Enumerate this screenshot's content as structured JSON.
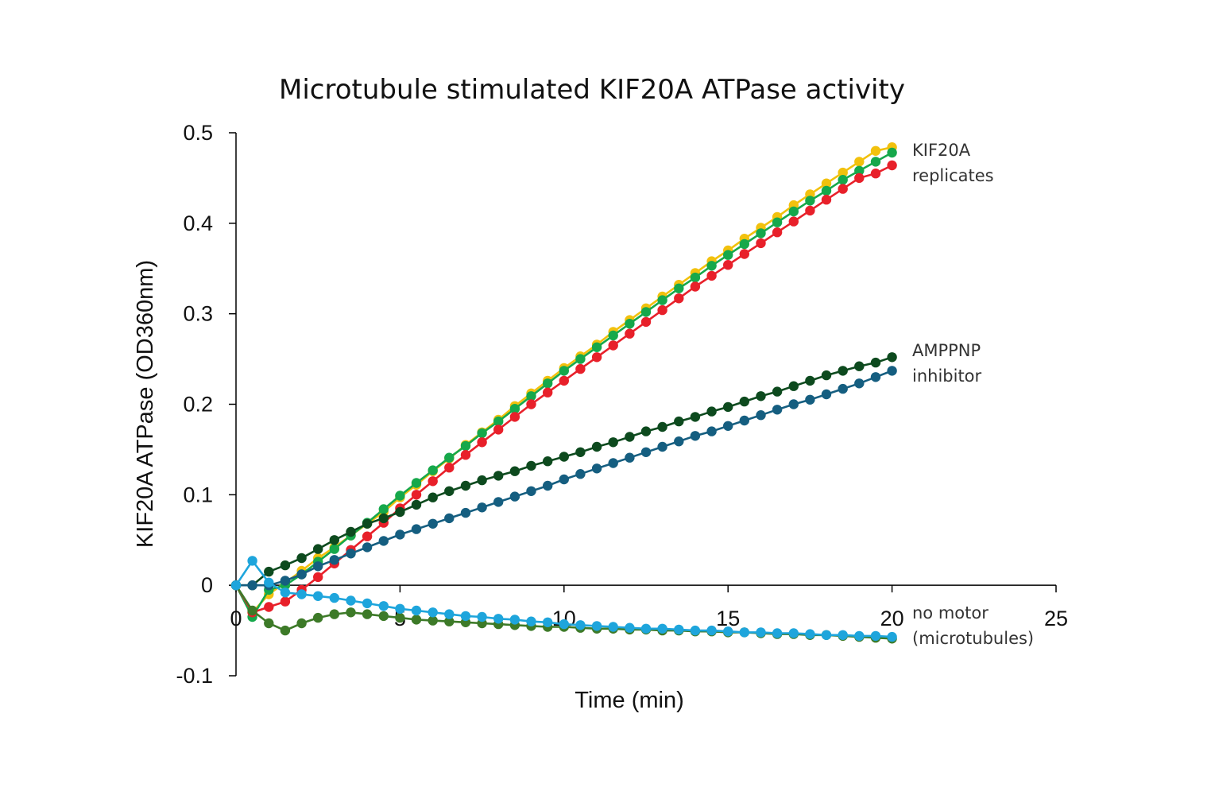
{
  "chart_data": {
    "type": "line",
    "title": "Microtubule stimulated KIF20A ATPase activity",
    "xlabel": "Time (min)",
    "ylabel": "KIF20A  ATPase  (OD360nm)",
    "xlim": [
      0,
      25
    ],
    "ylim": [
      -0.1,
      0.5
    ],
    "x_ticks": [
      "0",
      "5",
      "10",
      "15",
      "20",
      "25"
    ],
    "y_ticks": [
      "0.5",
      "0.4",
      "0.3",
      "0.2",
      "0.1",
      "0",
      "-0.1"
    ],
    "grid": false,
    "x_step": 0.5,
    "annotations": [
      {
        "id": "kif20a",
        "lines": [
          "KIF20A",
          "replicates"
        ]
      },
      {
        "id": "amppnp",
        "lines": [
          "AMPPNP",
          "inhibitor"
        ]
      },
      {
        "id": "nomotor",
        "lines": [
          "no motor",
          "(microtubules)"
        ]
      }
    ],
    "series": [
      {
        "name": "KIF20A replicate 1",
        "color": "#f2c10d",
        "values": [
          0,
          -0.03,
          -0.01,
          0.003,
          0.016,
          0.03,
          0.042,
          0.055,
          0.068,
          0.081,
          0.097,
          0.111,
          0.126,
          0.14,
          0.155,
          0.169,
          0.183,
          0.198,
          0.212,
          0.226,
          0.24,
          0.253,
          0.266,
          0.28,
          0.293,
          0.306,
          0.319,
          0.332,
          0.345,
          0.358,
          0.37,
          0.383,
          0.395,
          0.407,
          0.42,
          0.432,
          0.444,
          0.456,
          0.468,
          0.48,
          0.484
        ]
      },
      {
        "name": "KIF20A replicate 2",
        "color": "#16a84b",
        "values": [
          0,
          -0.035,
          -0.005,
          0.0,
          0.012,
          0.026,
          0.04,
          0.055,
          0.069,
          0.084,
          0.099,
          0.113,
          0.127,
          0.141,
          0.154,
          0.168,
          0.181,
          0.195,
          0.209,
          0.223,
          0.237,
          0.25,
          0.263,
          0.276,
          0.289,
          0.302,
          0.315,
          0.328,
          0.34,
          0.353,
          0.365,
          0.377,
          0.389,
          0.401,
          0.413,
          0.425,
          0.436,
          0.448,
          0.458,
          0.468,
          0.478
        ]
      },
      {
        "name": "KIF20A replicate 3",
        "color": "#e8202a",
        "values": [
          0,
          -0.03,
          -0.024,
          -0.018,
          -0.005,
          0.009,
          0.024,
          0.039,
          0.054,
          0.069,
          0.085,
          0.1,
          0.115,
          0.13,
          0.144,
          0.158,
          0.172,
          0.186,
          0.2,
          0.213,
          0.226,
          0.239,
          0.252,
          0.265,
          0.278,
          0.291,
          0.304,
          0.317,
          0.33,
          0.342,
          0.354,
          0.366,
          0.378,
          0.39,
          0.402,
          0.414,
          0.426,
          0.438,
          0.45,
          0.455,
          0.464
        ]
      },
      {
        "name": "AMPPNP inhibitor 1",
        "color": "#0d4a1e",
        "values": [
          0,
          0,
          0.015,
          0.022,
          0.03,
          0.04,
          0.05,
          0.059,
          0.068,
          0.074,
          0.081,
          0.089,
          0.097,
          0.104,
          0.11,
          0.116,
          0.121,
          0.126,
          0.132,
          0.137,
          0.142,
          0.147,
          0.153,
          0.158,
          0.164,
          0.17,
          0.175,
          0.181,
          0.186,
          0.192,
          0.197,
          0.203,
          0.209,
          0.214,
          0.22,
          0.226,
          0.232,
          0.237,
          0.242,
          0.246,
          0.252
        ]
      },
      {
        "name": "AMPPNP inhibitor 2",
        "color": "#155e80",
        "values": [
          0,
          0,
          0.0,
          0.005,
          0.012,
          0.021,
          0.028,
          0.035,
          0.042,
          0.049,
          0.056,
          0.062,
          0.068,
          0.074,
          0.08,
          0.086,
          0.092,
          0.098,
          0.104,
          0.11,
          0.117,
          0.123,
          0.129,
          0.135,
          0.141,
          0.147,
          0.153,
          0.159,
          0.165,
          0.17,
          0.176,
          0.182,
          0.188,
          0.194,
          0.2,
          0.205,
          0.211,
          0.217,
          0.223,
          0.23,
          0.237
        ]
      },
      {
        "name": "no motor 1",
        "color": "#3d7a28",
        "values": [
          0,
          -0.028,
          -0.042,
          -0.05,
          -0.042,
          -0.036,
          -0.032,
          -0.03,
          -0.032,
          -0.034,
          -0.036,
          -0.038,
          -0.039,
          -0.04,
          -0.041,
          -0.042,
          -0.043,
          -0.044,
          -0.045,
          -0.046,
          -0.046,
          -0.047,
          -0.048,
          -0.048,
          -0.049,
          -0.049,
          -0.05,
          -0.05,
          -0.051,
          -0.051,
          -0.052,
          -0.052,
          -0.053,
          -0.054,
          -0.054,
          -0.055,
          -0.055,
          -0.056,
          -0.057,
          -0.058,
          -0.059
        ]
      },
      {
        "name": "no motor 2",
        "color": "#1ea5dc",
        "values": [
          0,
          0.027,
          0.003,
          -0.008,
          -0.01,
          -0.012,
          -0.014,
          -0.017,
          -0.02,
          -0.023,
          -0.026,
          -0.028,
          -0.03,
          -0.032,
          -0.034,
          -0.035,
          -0.037,
          -0.038,
          -0.04,
          -0.041,
          -0.043,
          -0.044,
          -0.045,
          -0.046,
          -0.047,
          -0.048,
          -0.048,
          -0.049,
          -0.05,
          -0.05,
          -0.051,
          -0.052,
          -0.052,
          -0.053,
          -0.053,
          -0.054,
          -0.055,
          -0.055,
          -0.056,
          -0.056,
          -0.057
        ]
      }
    ]
  }
}
